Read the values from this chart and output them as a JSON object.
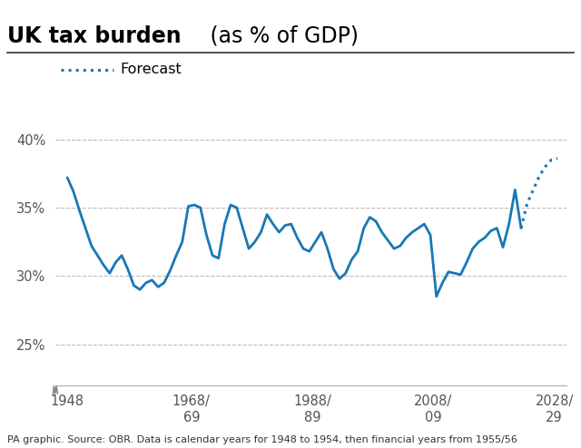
{
  "title_bold": "UK tax burden",
  "title_normal": " (as % of GDP)",
  "footnote": "PA graphic. Source: OBR. Data is calendar years for 1948 to 1954, then financial years from 1955/56",
  "line_color": "#1878b4",
  "background_color": "#ffffff",
  "yticks": [
    25,
    30,
    35,
    40
  ],
  "ytick_labels": [
    "25%",
    "30%",
    "35%",
    "40%"
  ],
  "xtick_positions": [
    1948,
    1968.5,
    1988.5,
    2008.5,
    2028.5
  ],
  "xtick_labels": [
    "1948",
    "1968/\n69",
    "1988/\n89",
    "2008/\n09",
    "2028/\n29"
  ],
  "solid_data": {
    "years": [
      1948,
      1949,
      1950,
      1951,
      1952,
      1953,
      1954,
      1955,
      1956,
      1957,
      1958,
      1959,
      1960,
      1961,
      1962,
      1963,
      1964,
      1965,
      1966,
      1967,
      1968,
      1969,
      1970,
      1971,
      1972,
      1973,
      1974,
      1975,
      1976,
      1977,
      1978,
      1979,
      1980,
      1981,
      1982,
      1983,
      1984,
      1985,
      1986,
      1987,
      1988,
      1989,
      1990,
      1991,
      1992,
      1993,
      1994,
      1995,
      1996,
      1997,
      1998,
      1999,
      2000,
      2001,
      2002,
      2003,
      2004,
      2005,
      2006,
      2007,
      2008,
      2009,
      2010,
      2011,
      2012,
      2013,
      2014,
      2015,
      2016,
      2017,
      2018,
      2019,
      2020,
      2021,
      2022,
      2023
    ],
    "values": [
      37.2,
      36.2,
      34.8,
      33.5,
      32.2,
      31.5,
      30.8,
      30.2,
      31.0,
      31.5,
      30.5,
      29.3,
      29.0,
      29.5,
      29.7,
      29.2,
      29.5,
      30.4,
      31.5,
      32.5,
      35.1,
      35.2,
      35.0,
      33.0,
      31.5,
      31.3,
      33.8,
      35.2,
      35.0,
      33.5,
      32.0,
      32.5,
      33.2,
      34.5,
      33.8,
      33.2,
      33.7,
      33.8,
      32.8,
      32.0,
      31.8,
      32.5,
      33.2,
      32.0,
      30.5,
      29.8,
      30.2,
      31.2,
      31.8,
      33.5,
      34.3,
      34.0,
      33.2,
      32.6,
      32.0,
      32.2,
      32.8,
      33.2,
      33.5,
      33.8,
      33.0,
      28.5,
      29.5,
      30.3,
      30.2,
      30.1,
      31.0,
      32.0,
      32.5,
      32.8,
      33.3,
      33.5,
      32.1,
      33.8,
      36.3,
      33.5
    ]
  },
  "forecast_data": {
    "years": [
      2023,
      2024,
      2025,
      2026,
      2027,
      2028,
      2029
    ],
    "values": [
      33.5,
      35.3,
      36.3,
      37.3,
      38.0,
      38.5,
      38.6
    ]
  },
  "ylim": [
    22,
    42
  ],
  "xlim": [
    1946,
    2030.5
  ]
}
